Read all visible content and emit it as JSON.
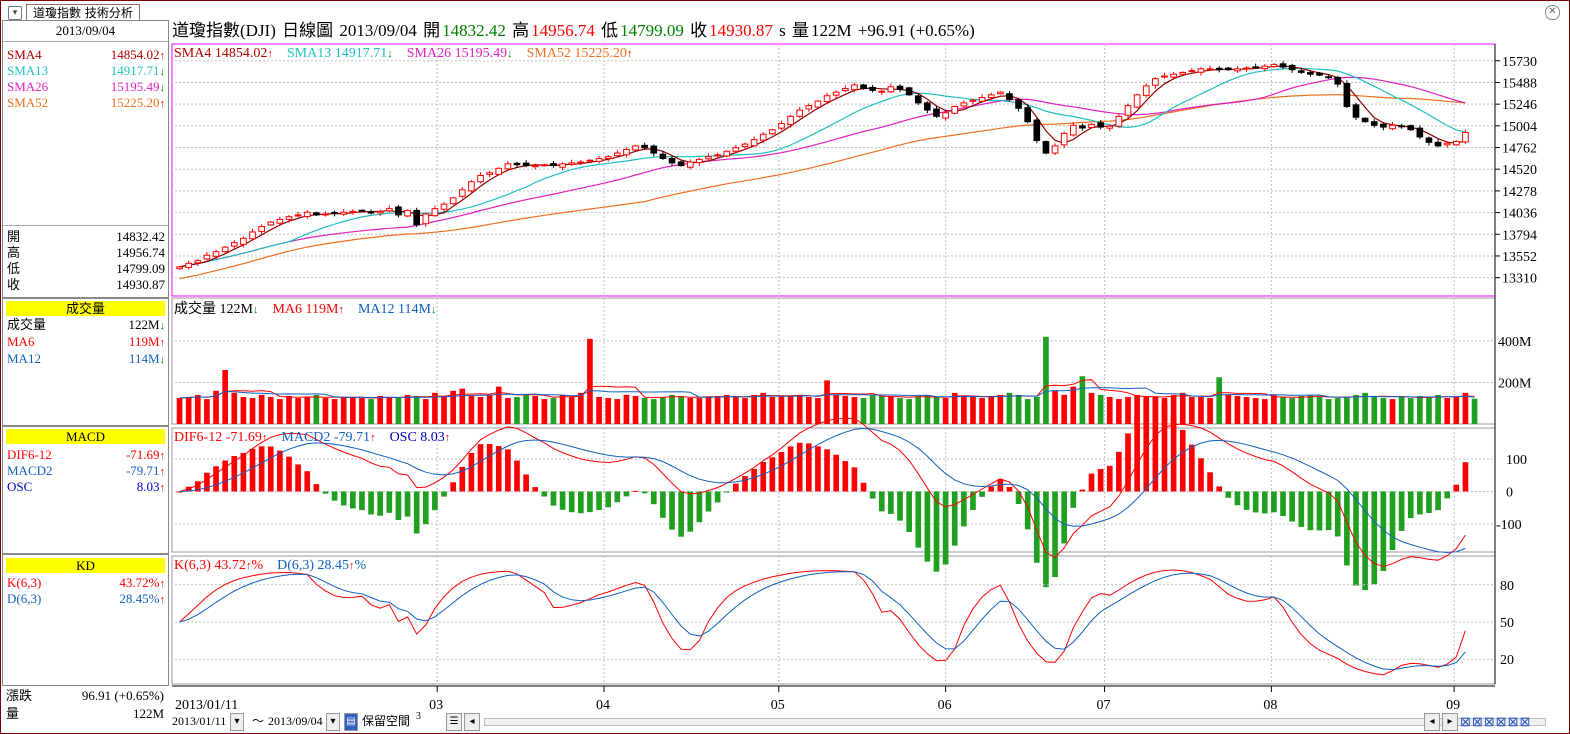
{
  "tab": {
    "label": "道瓊指數 技術分析"
  },
  "header": {
    "name": "道瓊指數(DJI)",
    "period": "日線圖",
    "date": "2013/09/04",
    "open_label": "開",
    "open": "14832.42",
    "high_label": "高",
    "high": "14956.74",
    "low_label": "低",
    "low": "14799.09",
    "close_label": "收",
    "close": "14930.87",
    "close_suffix": "s",
    "vol_label": "量",
    "volume": "122M",
    "change": "+96.91 (+0.65%)"
  },
  "left": {
    "date": "2013/09/04",
    "sma": [
      {
        "label": "SMA4",
        "value": "14854.02",
        "dir": "up",
        "color": "#b00000"
      },
      {
        "label": "SMA13",
        "value": "14917.71",
        "dir": "down",
        "color": "#20c0c0"
      },
      {
        "label": "SMA26",
        "value": "15195.49",
        "dir": "down",
        "color": "#e020c0"
      },
      {
        "label": "SMA52",
        "value": "15225.20",
        "dir": "up",
        "color": "#f07020"
      }
    ],
    "ohlc": [
      {
        "label": "開",
        "value": "14832.42"
      },
      {
        "label": "高",
        "value": "14956.74"
      },
      {
        "label": "低",
        "value": "14799.09"
      },
      {
        "label": "收",
        "value": "14930.87"
      }
    ],
    "vol_title": "成交量",
    "vol": [
      {
        "label": "成交量",
        "value": "122M",
        "dir": "down",
        "color": "#000000"
      },
      {
        "label": "MA6",
        "value": "119M",
        "dir": "up",
        "color": "#ff0000"
      },
      {
        "label": "MA12",
        "value": "114M",
        "dir": "down",
        "color": "#1060c0"
      }
    ],
    "macd_title": "MACD",
    "macd": [
      {
        "label": "DIF6-12",
        "value": "-71.69",
        "dir": "up",
        "color": "#ff0000"
      },
      {
        "label": "MACD2",
        "value": "-79.71",
        "dir": "up",
        "color": "#1060c0"
      },
      {
        "label": "OSC",
        "value": "8.03",
        "dir": "up",
        "color": "#0000c0"
      }
    ],
    "kd_title": "KD",
    "kd": [
      {
        "label": "K(6,3)",
        "value": "43.72%",
        "dir": "up",
        "color": "#ff0000"
      },
      {
        "label": "D(6,3)",
        "value": "28.45%",
        "dir": "up",
        "color": "#1060c0"
      }
    ],
    "change_label": "漲跌",
    "change_value": "96.91 (+0.65%)",
    "volume_label": "量",
    "volume_value": "122M"
  },
  "legends": {
    "price": [
      {
        "text": "SMA4 14854.02",
        "dir": "up",
        "color": "#b00000"
      },
      {
        "text": "SMA13 14917.71",
        "dir": "down",
        "color": "#20c0c0"
      },
      {
        "text": "SMA26 15195.49",
        "dir": "down",
        "color": "#e020c0"
      },
      {
        "text": "SMA52 15225.20",
        "dir": "up",
        "color": "#f07020"
      }
    ],
    "volume": [
      {
        "text": "成交量 122M",
        "dir": "down",
        "color": "#000000"
      },
      {
        "text": "MA6 119M",
        "dir": "up",
        "color": "#ff0000"
      },
      {
        "text": "MA12 114M",
        "dir": "down",
        "color": "#1060c0"
      }
    ],
    "macd": [
      {
        "text": "DIF6-12 -71.69",
        "dir": "up",
        "color": "#ff0000"
      },
      {
        "text": "MACD2 -79.71",
        "dir": "up",
        "color": "#1060c0"
      },
      {
        "text": "OSC 8.03",
        "dir": "up",
        "color": "#0000c0"
      }
    ],
    "kd": [
      {
        "text": "K(6,3) 43.72",
        "dir": "up",
        "suffix": "%",
        "color": "#ff0000"
      },
      {
        "text": "D(6,3) 28.45",
        "dir": "up",
        "suffix": "%",
        "color": "#1060c0"
      }
    ]
  },
  "bottom": {
    "start_date": "2013/01/11",
    "end_date": "2013/09/04",
    "tilde": "～",
    "reserve_label": "保留空間",
    "reserve_value": "3"
  },
  "colors": {
    "up": "#ff0000",
    "down": "#008000",
    "axis": "#000000",
    "grid": "#c0c0c0",
    "frame": "#ff00ff"
  },
  "icons": [
    "calendar-icon",
    "calendar-icon",
    "db-icon",
    "grid-icon",
    "scroll-left-icon",
    "zoom-icons"
  ],
  "chart_data": {
    "type": "candlestick",
    "x_label_start": "2013/01/11",
    "month_labels": [
      "03",
      "04",
      "05",
      "06",
      "07",
      "08",
      "09"
    ],
    "price": {
      "ylim": [
        13150,
        15850
      ],
      "yticks": [
        13310,
        13552,
        13794,
        14036,
        14278,
        14520,
        14762,
        15004,
        15246,
        15488,
        15730
      ],
      "close": [
        13430,
        13470,
        13500,
        13560,
        13600,
        13650,
        13700,
        13750,
        13820,
        13880,
        13930,
        13960,
        13990,
        14010,
        14040,
        14010,
        14020,
        14030,
        14040,
        14050,
        14060,
        14040,
        14050,
        14080,
        14010,
        14060,
        13900,
        14020,
        14080,
        14130,
        14200,
        14290,
        14380,
        14450,
        14480,
        14530,
        14580,
        14570,
        14560,
        14560,
        14570,
        14560,
        14580,
        14590,
        14600,
        14620,
        14640,
        14660,
        14700,
        14740,
        14780,
        14760,
        14700,
        14640,
        14590,
        14560,
        14600,
        14630,
        14660,
        14680,
        14720,
        14760,
        14800,
        14850,
        14910,
        14960,
        15030,
        15110,
        15180,
        15230,
        15280,
        15340,
        15380,
        15420,
        15460,
        15420,
        15400,
        15390,
        15440,
        15410,
        15350,
        15260,
        15180,
        15110,
        15150,
        15220,
        15260,
        15290,
        15320,
        15350,
        15380,
        15300,
        15200,
        15050,
        14840,
        14700,
        14780,
        14920,
        15010,
        14980,
        15020,
        14990,
        15000,
        15110,
        15230,
        15350,
        15450,
        15530,
        15560,
        15580,
        15600,
        15620,
        15640,
        15640,
        15630,
        15630,
        15640,
        15650,
        15660,
        15670,
        15690,
        15660,
        15630,
        15600,
        15580,
        15570,
        15550,
        15470,
        15220,
        15100,
        15050,
        15010,
        14990,
        15010,
        15000,
        14960,
        14880,
        14820,
        14780,
        14810,
        14830,
        14930
      ],
      "sma4_last": 14854.02,
      "sma13_last": 14917.71,
      "sma26_last": 15195.49,
      "sma52_last": 15225.2
    },
    "volume": {
      "ylim": [
        0,
        520
      ],
      "yticks": [
        200,
        400
      ],
      "ytick_labels": [
        "200M",
        "400M"
      ],
      "values": [
        125,
        130,
        140,
        120,
        160,
        260,
        150,
        130,
        125,
        140,
        130,
        120,
        135,
        125,
        130,
        140,
        125,
        120,
        130,
        130,
        125,
        120,
        135,
        125,
        130,
        140,
        135,
        120,
        150,
        130,
        160,
        170,
        135,
        130,
        140,
        180,
        125,
        130,
        140,
        135,
        120,
        125,
        140,
        130,
        150,
        410,
        130,
        125,
        120,
        140,
        135,
        125,
        120,
        130,
        140,
        135,
        125,
        125,
        130,
        135,
        140,
        135,
        125,
        140,
        150,
        130,
        135,
        135,
        140,
        130,
        125,
        210,
        140,
        135,
        130,
        125,
        140,
        135,
        130,
        125,
        120,
        135,
        140,
        130,
        125,
        150,
        135,
        130,
        125,
        130,
        140,
        150,
        140,
        120,
        130,
        420,
        160,
        140,
        180,
        230,
        150,
        140,
        130,
        120,
        130,
        140,
        135,
        130,
        125,
        140,
        150,
        130,
        130,
        125,
        225,
        140,
        135,
        130,
        125,
        120,
        140,
        130,
        125,
        135,
        140,
        130,
        120,
        125,
        130,
        140,
        150,
        130,
        125,
        120,
        130,
        125,
        135,
        130,
        140,
        125,
        130,
        150,
        122
      ]
    },
    "macd": {
      "ylim": [
        -180,
        140
      ],
      "yticks": [
        100,
        0,
        -100
      ],
      "dif_last": -71.69,
      "macd2_last": -79.71,
      "osc_last": 8.03
    },
    "kd": {
      "ylim": [
        0,
        100
      ],
      "yticks": [
        80,
        50,
        20
      ],
      "k_last": 43.72,
      "d_last": 28.45
    }
  }
}
